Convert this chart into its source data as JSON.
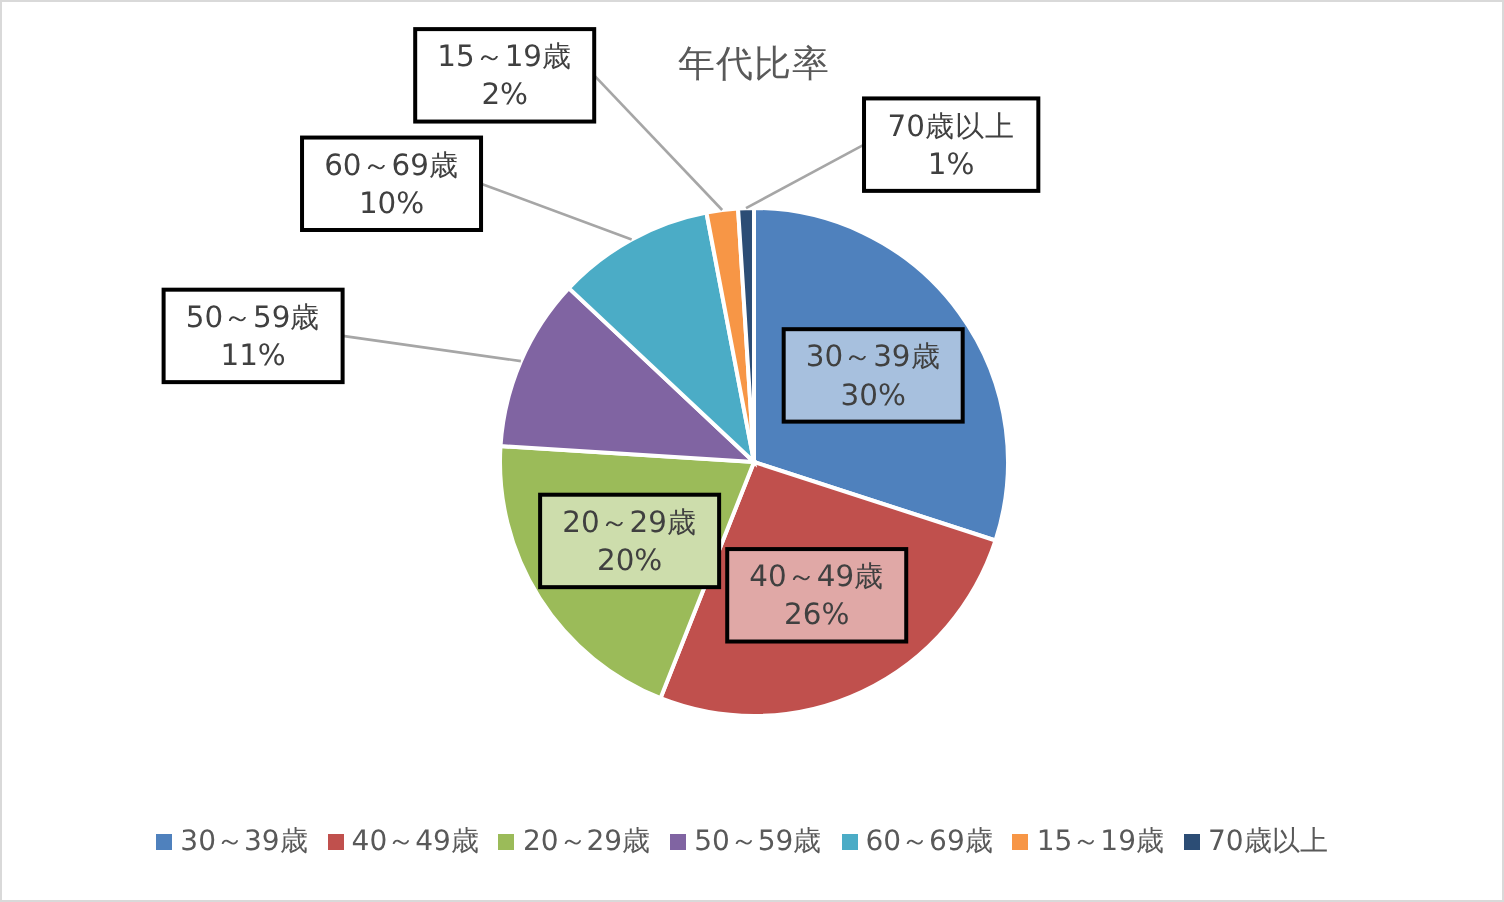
{
  "chart_data": {
    "type": "pie",
    "title": "年代比率",
    "categories": [
      "30～39歳",
      "40～49歳",
      "20～29歳",
      "50～59歳",
      "60～69歳",
      "15～19歳",
      "70歳以上"
    ],
    "values": [
      30,
      26,
      20,
      11,
      10,
      2,
      1
    ],
    "value_labels": [
      "30%",
      "26%",
      "20%",
      "11%",
      "10%",
      "2%",
      "1%"
    ],
    "colors": [
      "#4f81bd",
      "#c0504d",
      "#9bbb59",
      "#8064a2",
      "#4bacc6",
      "#f79646",
      "#2c4d75"
    ],
    "legend": "bottom"
  }
}
